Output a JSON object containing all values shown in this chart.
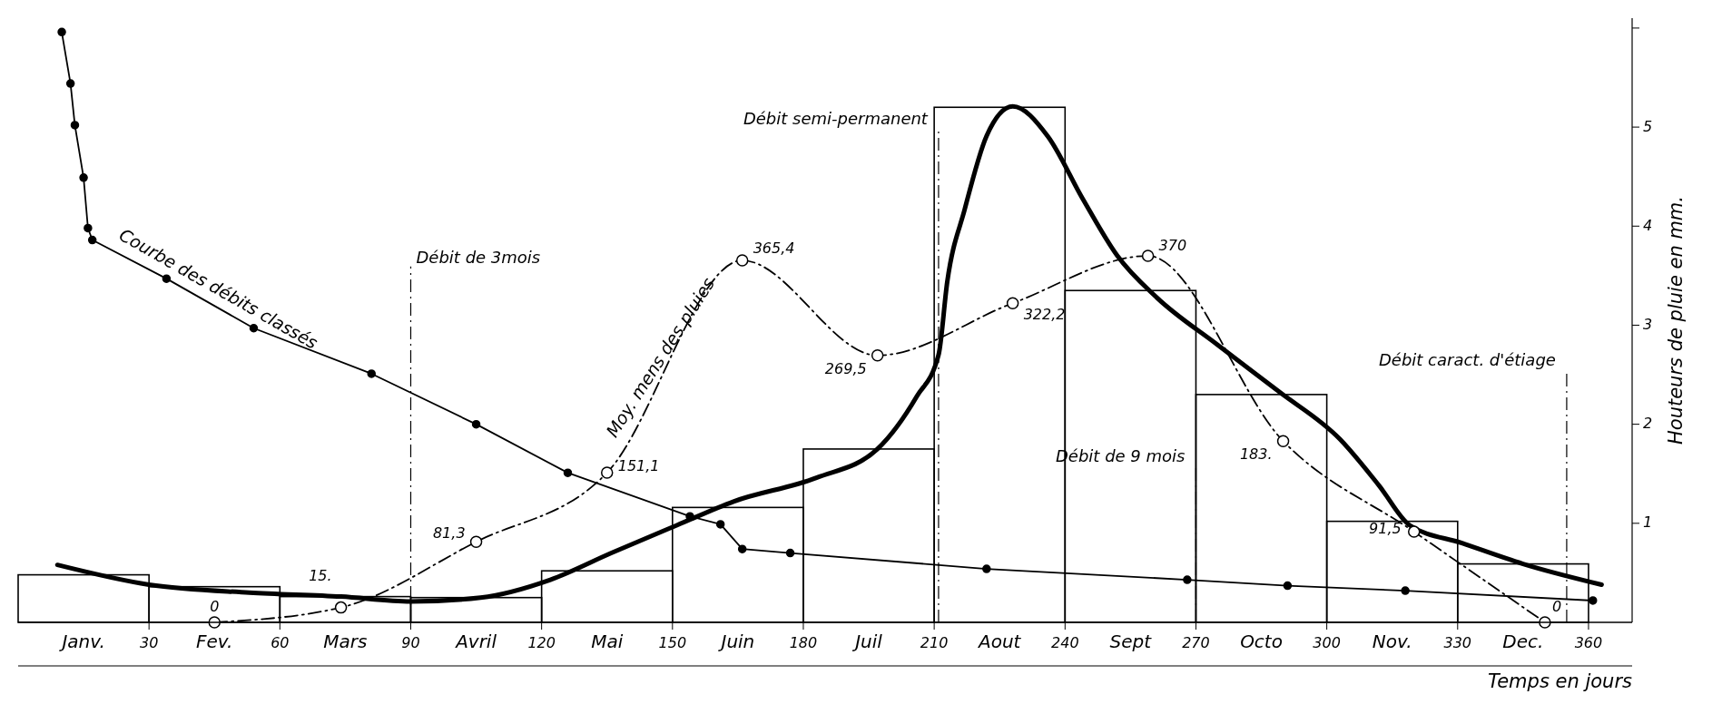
{
  "chart_data": {
    "type": "histogram",
    "xlabel": "Temps en jours",
    "ylabel": "Houteurs de pluie en mm.",
    "bins": [
      0,
      30,
      60,
      90,
      120,
      150,
      180,
      210,
      240,
      270,
      300,
      330,
      360
    ],
    "values": [
      0.48,
      0.36,
      0.26,
      0.25,
      0.52,
      1.16,
      1.75,
      5.2,
      3.35,
      2.3,
      1.02,
      0.59
    ],
    "color": "#000000",
    "series": [
      {
        "type": "line",
        "color": "#000000",
        "line_style": "solid",
        "marker": "none",
        "x": [
          9,
          30,
          53,
          74,
          90,
          106,
          122,
          136,
          151,
          164,
          183,
          197,
          206,
          211,
          213,
          217,
          222,
          228,
          236,
          244,
          252,
          261,
          275,
          289,
          303,
          312,
          319,
          331,
          345,
          363
        ],
        "values": [
          0.58,
          0.38,
          0.3,
          0.26,
          0.21,
          0.25,
          0.43,
          0.7,
          0.98,
          1.22,
          1.46,
          1.75,
          2.28,
          2.7,
          3.44,
          4.17,
          4.91,
          5.21,
          4.91,
          4.28,
          3.7,
          3.28,
          2.8,
          2.33,
          1.85,
          1.38,
          0.98,
          0.8,
          0.59,
          0.38
        ]
      },
      {
        "type": "line",
        "name": "Courbe des débits classés",
        "color": "#000000",
        "line_style": "solid",
        "marker": "circle",
        "x": [
          10,
          12,
          13,
          15,
          16,
          17,
          34,
          54,
          81,
          105,
          126,
          154,
          161,
          166,
          177,
          222,
          268,
          291,
          318,
          361
        ],
        "values": [
          5.96,
          5.44,
          5.02,
          4.49,
          3.98,
          3.86,
          3.47,
          2.97,
          2.51,
          2,
          1.51,
          1.07,
          0.99,
          0.74,
          0.7,
          0.54,
          0.43,
          0.37,
          0.32,
          0.22
        ]
      },
      {
        "type": "line",
        "axis": "y2",
        "name": "Moy. mens des pluies",
        "color": "#000000",
        "line_style": "dashed",
        "marker": "circle",
        "x": [
          45,
          74,
          105,
          135,
          166,
          197,
          228,
          259,
          290,
          320,
          350
        ],
        "values": [
          0,
          15,
          81.3,
          151.1,
          365.4,
          269.5,
          322.2,
          370,
          183,
          91.5,
          0
        ],
        "value_labels": [
          "0",
          "15.",
          "81,3",
          "151,1",
          "365,4",
          "269,5",
          "322,2",
          "370",
          "183.",
          "91,5",
          "0"
        ]
      }
    ],
    "ref_lines": [
      {
        "axis": "x",
        "value": 90,
        "label": "Débit de 3mois",
        "line_style": "dashed"
      },
      {
        "axis": "x",
        "value": 211,
        "label": "Débit semi-permanent",
        "line_style": "dashed"
      },
      {
        "axis": "x",
        "value": 270,
        "label": "Débit de 9 mois",
        "line_style": "dashed"
      },
      {
        "axis": "x",
        "value": 355,
        "label": "Débit caract. d'étiage",
        "line_style": "dashed"
      }
    ],
    "xlim": [
      0,
      370
    ],
    "xticks": [
      {
        "value": 15,
        "label": "Janv."
      },
      30,
      {
        "value": 45,
        "label": "Fev."
      },
      60,
      {
        "value": 75,
        "label": "Mars"
      },
      90,
      {
        "value": 105,
        "label": "Avril"
      },
      120,
      {
        "value": 135,
        "label": "Mai"
      },
      150,
      {
        "value": 165,
        "label": "Juin"
      },
      180,
      {
        "value": 195,
        "label": "Juil"
      },
      210,
      {
        "value": 225,
        "label": "Aout"
      },
      240,
      {
        "value": 255,
        "label": "Sept"
      },
      270,
      {
        "value": 285,
        "label": "Octo"
      },
      300,
      {
        "value": 315,
        "label": "Nov."
      },
      330,
      {
        "value": 345,
        "label": "Dec."
      },
      360
    ],
    "ylim": [
      0,
      6.1
    ],
    "yticks": [
      1,
      2,
      3,
      4,
      5,
      {
        "value": 6,
        "label": null
      }
    ],
    "y2lim": [
      0,
      610
    ]
  }
}
